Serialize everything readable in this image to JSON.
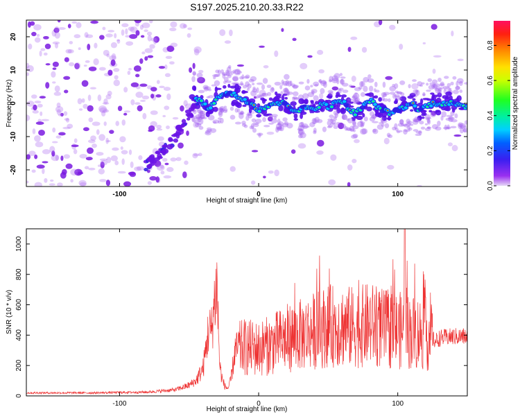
{
  "title": "S197.2025.210.20.33.R22",
  "colors": {
    "signal": "#ee3333",
    "frame": "#000000"
  },
  "chart_data": [
    {
      "type": "heatmap",
      "xlabel": "Height of straight line (km)",
      "ylabel": "Frequency (Hz)",
      "xlim": [
        -167,
        150
      ],
      "ylim": [
        -25,
        25
      ],
      "xticks": [
        -100,
        0,
        100
      ],
      "yticks": [
        -20,
        -10,
        0,
        10,
        20
      ],
      "colorbar": {
        "label": "Normalized spectral amplitude",
        "range": [
          0,
          0.94
        ],
        "ticks": [
          "0.0",
          "0.2",
          "0.4",
          "0.6",
          "0.8"
        ]
      },
      "ridge": [
        [
          -45,
          2
        ],
        [
          -40,
          0
        ],
        [
          -35,
          -2
        ],
        [
          -30,
          2
        ],
        [
          -25,
          3
        ],
        [
          -20,
          3
        ],
        [
          -15,
          2
        ],
        [
          -10,
          1
        ],
        [
          -5,
          0
        ],
        [
          0,
          -2
        ],
        [
          5,
          -1
        ],
        [
          10,
          0
        ],
        [
          15,
          0
        ],
        [
          20,
          0
        ],
        [
          25,
          -2
        ],
        [
          30,
          -2
        ],
        [
          35,
          -1
        ],
        [
          40,
          -2
        ],
        [
          45,
          0
        ],
        [
          50,
          -1
        ],
        [
          55,
          0
        ],
        [
          60,
          1
        ],
        [
          65,
          -2
        ],
        [
          70,
          -3
        ],
        [
          75,
          -1
        ],
        [
          80,
          1
        ],
        [
          85,
          -1
        ],
        [
          90,
          -2
        ],
        [
          95,
          -3
        ],
        [
          100,
          -2
        ],
        [
          105,
          -1
        ],
        [
          110,
          0
        ],
        [
          115,
          -2
        ],
        [
          120,
          -1
        ],
        [
          125,
          0
        ],
        [
          130,
          0
        ],
        [
          135,
          0
        ],
        [
          140,
          0
        ],
        [
          145,
          -1
        ],
        [
          150,
          -1
        ]
      ],
      "branch": [
        [
          -82,
          -19
        ],
        [
          -75,
          -17
        ],
        [
          -65,
          -13
        ],
        [
          -55,
          -7
        ],
        [
          -48,
          -2
        ],
        [
          -44,
          1
        ]
      ]
    },
    {
      "type": "line",
      "xlabel": "Height of straight line (km)",
      "ylabel": "SNR (10 * v/v)",
      "xlim": [
        -167,
        150
      ],
      "ylim": [
        0,
        1100
      ],
      "xticks": [
        -100,
        0,
        100
      ],
      "yticks": [
        0,
        200,
        400,
        600,
        800,
        1000
      ],
      "series": [
        {
          "x": [
            -167,
            -120,
            -80,
            -60,
            -50,
            -45,
            -40,
            -38,
            -36,
            -34,
            -32,
            -30,
            -28,
            -26,
            -24,
            -22,
            -20,
            -17,
            -10,
            0,
            10,
            20,
            30,
            40,
            50,
            60,
            70,
            80,
            90,
            100,
            105,
            110,
            120,
            127,
            130,
            140,
            150
          ],
          "values": [
            20,
            20,
            25,
            40,
            70,
            100,
            180,
            300,
            440,
            420,
            600,
            740,
            200,
            100,
            60,
            50,
            100,
            300,
            320,
            310,
            340,
            380,
            400,
            430,
            460,
            460,
            450,
            470,
            440,
            430,
            430,
            420,
            410,
            360,
            380,
            390,
            390
          ]
        }
      ]
    }
  ]
}
